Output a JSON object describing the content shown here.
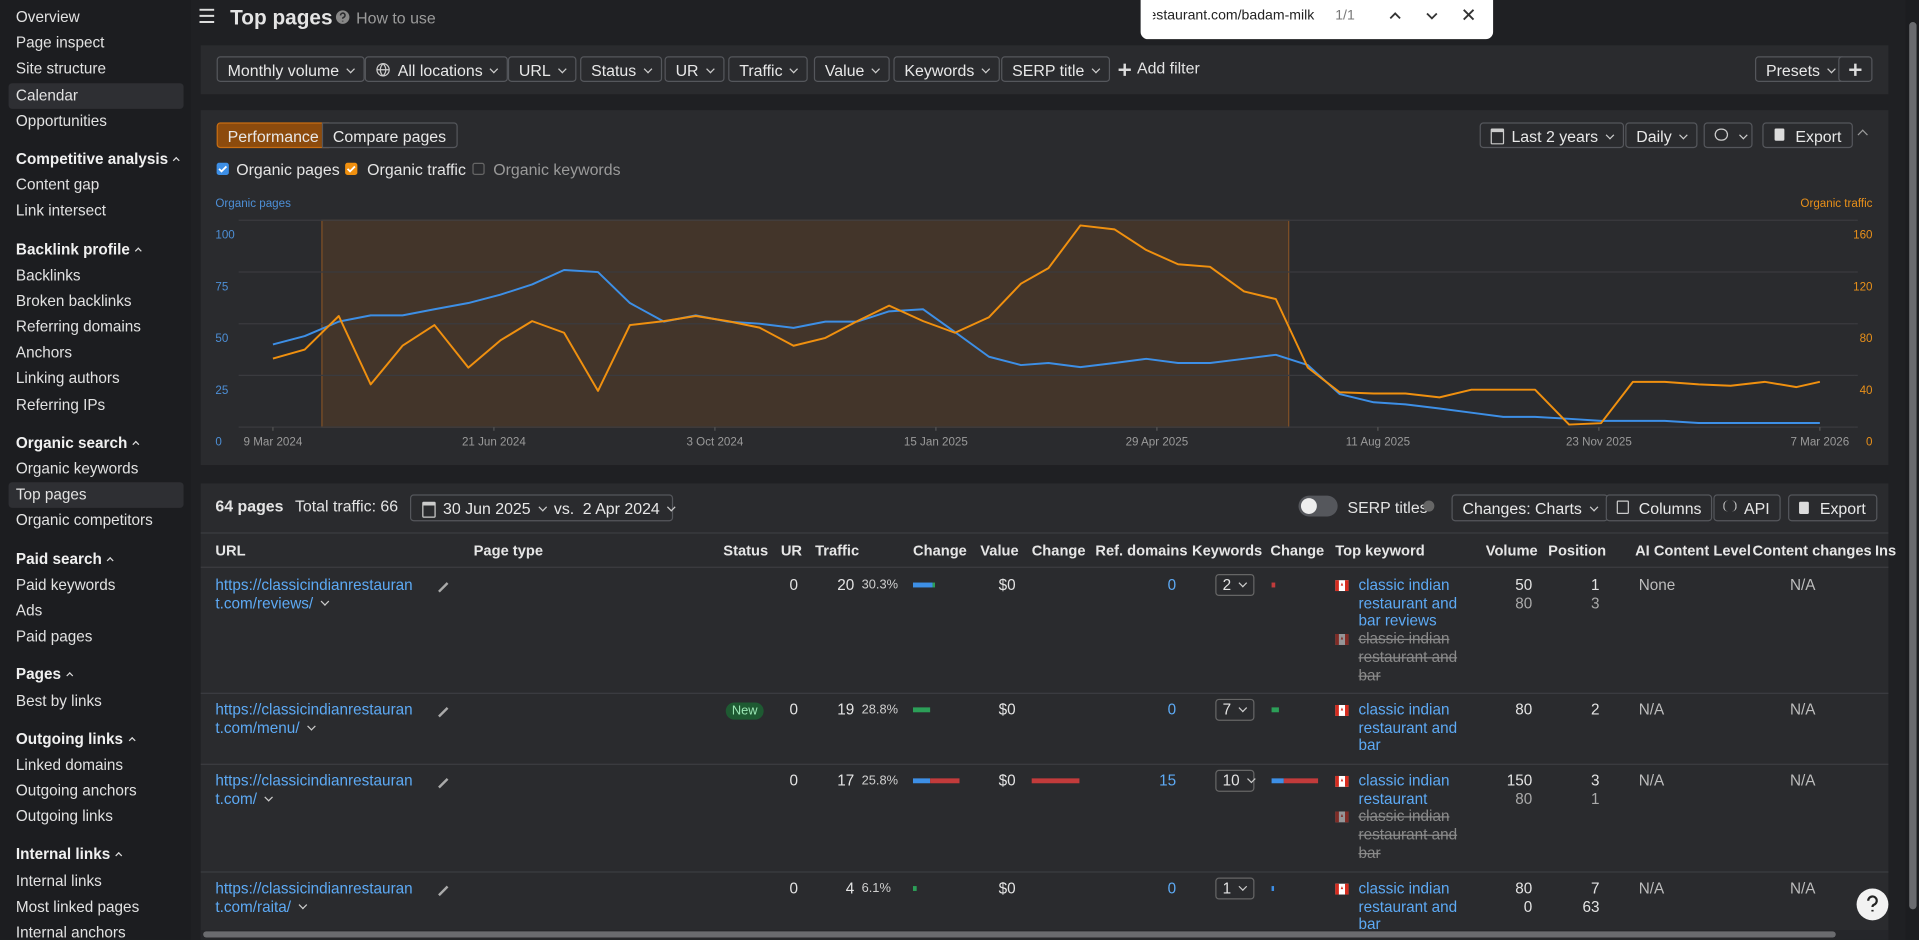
{
  "sidebar": {
    "groups": [
      {
        "items": [
          "Overview",
          "Page inspect",
          "Site structure",
          "Calendar",
          "Opportunities"
        ]
      },
      {
        "title": "Competitive analysis",
        "items": [
          "Content gap",
          "Link intersect"
        ]
      },
      {
        "title": "Backlink profile",
        "items": [
          "Backlinks",
          "Broken backlinks",
          "Referring domains",
          "Anchors",
          "Linking authors",
          "Referring IPs"
        ]
      },
      {
        "title": "Organic search",
        "items": [
          "Organic keywords",
          "Top pages",
          "Organic competitors"
        ]
      },
      {
        "title": "Paid search",
        "items": [
          "Paid keywords",
          "Ads",
          "Paid pages"
        ]
      },
      {
        "title": "Pages",
        "items": [
          "Best by links"
        ]
      },
      {
        "title": "Outgoing links",
        "items": [
          "Linked domains",
          "Outgoing anchors",
          "Outgoing links"
        ]
      },
      {
        "title": "Internal links",
        "items": [
          "Internal links",
          "Most linked pages",
          "Internal anchors"
        ]
      }
    ]
  },
  "header": {
    "title": "Top pages",
    "help": "How to use"
  },
  "find_bar": {
    "query": "restaurant.com/badam-milk/",
    "count": "1/1"
  },
  "filters": {
    "items": [
      "Monthly volume",
      "All locations",
      "URL",
      "Status",
      "UR",
      "Traffic",
      "Value",
      "Keywords",
      "SERP title"
    ],
    "add": "Add filter",
    "presets": "Presets"
  },
  "chart_panel": {
    "tabs": [
      "Performance",
      "Compare pages"
    ],
    "period": "Last 2 years",
    "interval": "Daily",
    "export": "Export",
    "extra_toggle": "Organic keywords"
  },
  "chart_data": {
    "type": "line",
    "y_label": "Organic pages",
    "y2_label": "Organic traffic",
    "grid": true,
    "xlim": [
      "9 Mar 2024",
      "7 Mar 2026"
    ],
    "xticks": [
      "9 Mar 2024",
      "21 Jun 2024",
      "3 Oct 2024",
      "15 Jan 2025",
      "29 Apr 2025",
      "11 Aug 2025",
      "23 Nov 2025",
      "7 Mar 2026"
    ],
    "ylim": [
      0,
      100
    ],
    "yticks": [
      0,
      25,
      50,
      75,
      100
    ],
    "y2lim": [
      0,
      160
    ],
    "y2ticks": [
      0,
      40,
      80,
      120,
      160
    ],
    "x": [
      "9 Mar 2024",
      "24 Mar 2024",
      "9 Apr 2024",
      "24 Apr 2024",
      "9 May 2024",
      "24 May 2024",
      "9 Jun 2024",
      "24 Jun 2024",
      "9 Jul 2024",
      "24 Jul 2024",
      "9 Aug 2024",
      "24 Aug 2024",
      "9 Sep 2024",
      "24 Sep 2024",
      "9 Oct 2024",
      "24 Oct 2024",
      "9 Nov 2024",
      "24 Nov 2024",
      "9 Dec 2024",
      "24 Dec 2024",
      "9 Jan 2025",
      "24 Jan 2025",
      "9 Feb 2025",
      "24 Feb 2025",
      "9 Mar 2025",
      "24 Mar 2025",
      "9 Apr 2025",
      "24 Apr 2025",
      "9 May 2025",
      "24 May 2025",
      "9 Jun 2025",
      "24 Jun 2025",
      "9 Jul 2025",
      "24 Jul 2025",
      "9 Aug 2025",
      "24 Aug 2025",
      "9 Sep 2025",
      "24 Sep 2025",
      "9 Oct 2025",
      "24 Oct 2025",
      "9 Nov 2025",
      "24 Nov 2025",
      "9 Dec 2025",
      "24 Dec 2025",
      "9 Jan 2026",
      "24 Jan 2026",
      "9 Feb 2026",
      "24 Feb 2026",
      "7 Mar 2026"
    ],
    "series": [
      {
        "name": "Organic pages",
        "color": "#3d8fe6",
        "axis": "y",
        "values": [
          40,
          44,
          51,
          54,
          54,
          57,
          60,
          64,
          69,
          76,
          75,
          60,
          51,
          54,
          51,
          50,
          48,
          51,
          51,
          56,
          57,
          46,
          34,
          30,
          31,
          29,
          31,
          33,
          31,
          31,
          33,
          35,
          30,
          16,
          12,
          11,
          9,
          7,
          5,
          5,
          4,
          3,
          3,
          3,
          2,
          2,
          2,
          2,
          2
        ]
      },
      {
        "name": "Organic traffic",
        "color": "#f0900f",
        "axis": "y2",
        "values": [
          53,
          60,
          86,
          33,
          63,
          79,
          46,
          67,
          82,
          73,
          28,
          79,
          82,
          86,
          82,
          77,
          63,
          69,
          82,
          94,
          82,
          73,
          85,
          111,
          123,
          156,
          153,
          137,
          126,
          124,
          105,
          99,
          46,
          27,
          26,
          26,
          23,
          29,
          29,
          29,
          2,
          3,
          35,
          35,
          33,
          32,
          35,
          31,
          35
        ]
      }
    ]
  },
  "table_panel": {
    "count": "64 pages",
    "total": "Total traffic: 66",
    "date_a": "30 Jun 2025",
    "vs": "vs.",
    "date_b": "2 Apr 2024",
    "serp_titles": "SERP titles",
    "changes": "Changes: Charts",
    "columns": "Columns",
    "api": "API",
    "export": "Export"
  },
  "table": {
    "headers": [
      "URL",
      "Page type",
      "Status",
      "UR",
      "Traffic",
      "Change",
      "Value",
      "Change",
      "Ref. domains",
      "Keywords",
      "Change",
      "Top keyword",
      "Volume",
      "Position",
      "AI Content Level",
      "Content changes",
      "Ins"
    ],
    "rows": [
      {
        "url": "https://classicindianrestaurant.com/reviews/",
        "ur": 0,
        "traffic": 20,
        "share": "30.3%",
        "value": "$0",
        "ref_domains": 0,
        "keywords": 2,
        "top_keywords": [
          {
            "text": "classic indian restaurant and bar reviews",
            "volume": 50,
            "position": 1
          },
          {
            "text": "classic indian restaurant and bar",
            "volume": 80,
            "position": 3,
            "lost": true
          }
        ],
        "ai": "None",
        "content_changes": "N/A"
      },
      {
        "url": "https://classicindianrestaurant.com/menu/",
        "status": "New",
        "ur": 0,
        "traffic": 19,
        "share": "28.8%",
        "value": "$0",
        "ref_domains": 0,
        "keywords": 7,
        "top_keywords": [
          {
            "text": "classic indian restaurant and bar",
            "volume": 80,
            "position": 2
          }
        ],
        "ai": "N/A",
        "content_changes": "N/A"
      },
      {
        "url": "https://classicindianrestaurant.com/",
        "ur": 0,
        "traffic": 17,
        "share": "25.8%",
        "value": "$0",
        "ref_domains": 15,
        "keywords": 10,
        "top_keywords": [
          {
            "text": "classic indian restaurant",
            "volume": 150,
            "position": 3
          },
          {
            "text": "classic indian restaurant and bar",
            "volume": 80,
            "position": 1,
            "lost": true
          }
        ],
        "ai": "N/A",
        "content_changes": "N/A"
      },
      {
        "url": "https://classicindianrestaurant.com/raita/",
        "ur": 0,
        "traffic": 4,
        "share": "6.1%",
        "value": "$0",
        "ref_domains": 0,
        "keywords": 1,
        "top_keywords": [
          {
            "text": "classic indian restaurant and bar",
            "volume": 80,
            "position": 7
          },
          {
            "volume": 0,
            "position": 63
          }
        ],
        "ai": "N/A",
        "content_changes": "N/A"
      }
    ]
  }
}
